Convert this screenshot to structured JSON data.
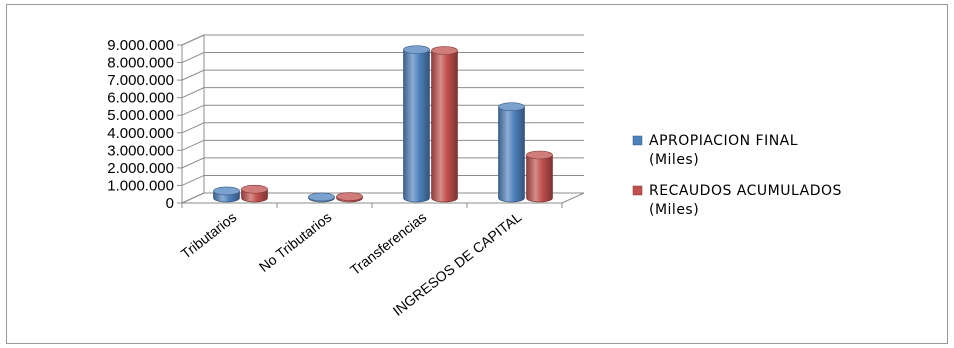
{
  "chart_data": {
    "type": "bar",
    "title": "",
    "xlabel": "",
    "ylabel": "",
    "ylim": [
      0,
      9000000
    ],
    "y_ticks": [
      "0",
      "1.000.000",
      "2.000.000",
      "3.000.000",
      "4.000.000",
      "5.000.000",
      "6.000.000",
      "7.000.000",
      "8.000.000",
      "9.000.000"
    ],
    "categories": [
      "Tributarios",
      "No Tributarios",
      "Transferencias",
      "INGRESOS DE CAPITAL"
    ],
    "series": [
      {
        "name": [
          "APROPIACION FINAL",
          "(Miles)"
        ],
        "color": "#4F81BD",
        "values": [
          400000,
          60000,
          8450000,
          5200000
        ]
      },
      {
        "name": [
          "RECAUDOS ACUMULADOS",
          "(Miles)"
        ],
        "color": "#C0504D",
        "values": [
          500000,
          80000,
          8400000,
          2450000
        ]
      }
    ],
    "grid": true,
    "legend_position": "right",
    "projection": "3d-clustered-column"
  }
}
